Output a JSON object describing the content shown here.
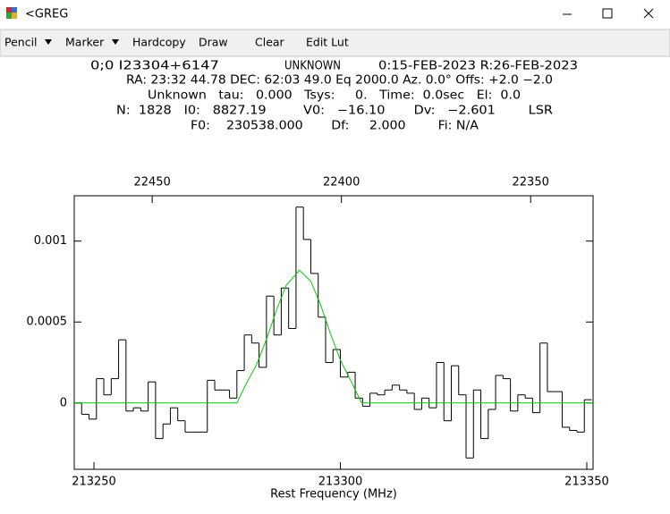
{
  "window": {
    "title": "<GREG",
    "menu": [
      "Pencil",
      "Marker",
      "Hardcopy",
      "Draw",
      "Clear",
      "Edit Lut"
    ]
  },
  "header": {
    "lines": [
      [
        "0;0 I23304+6147",
        "UNKNOWN",
        "0:15-FEB-2023 R:26-FEB-2023"
      ],
      [
        "RA: 23:32 44.78 DEC: 62:03 49.0 Eq 2000.0 Az. 0.0° Offs: +2.0 −2.0"
      ],
      [
        "Unknown   tau:   0.000   Tsys:     0.   Time:  0.0sec   El:  0.0"
      ],
      [
        "N:  1828   I0:   8827.19         V0:   −16.10       Dv:   −2.601        LSR"
      ],
      [
        "F0:    230538.000       Df:     2.000        Fi: N/A"
      ]
    ]
  },
  "chart_data": {
    "type": "step",
    "xlabel": "Rest Frequency (MHz)",
    "xlim": [
      213246.0,
      213351.27
    ],
    "xticks": [
      213250,
      213300,
      213350
    ],
    "x2lim": [
      22470.6,
      22333.5
    ],
    "x2ticks": [
      22450,
      22400,
      22350
    ],
    "ylim": [
      -0.00041,
      0.00128
    ],
    "yticks": [
      0,
      0.0005,
      0.001
    ],
    "series": [
      {
        "color": "#000000",
        "x": [
          213246.75,
          213248.25,
          213249.75,
          213251.25,
          213252.75,
          213254.25,
          213255.75,
          213257.25,
          213258.75,
          213260.25,
          213261.75,
          213263.25,
          213264.75,
          213266.25,
          213267.75,
          213269.25,
          213270.75,
          213272.25,
          213273.75,
          213275.25,
          213276.75,
          213278.25,
          213279.75,
          213281.25,
          213282.75,
          213284.25,
          213285.75,
          213287.25,
          213288.75,
          213290.25,
          213291.75,
          213293.25,
          213294.75,
          213296.25,
          213297.75,
          213299.25,
          213300.75,
          213302.25,
          213303.75,
          213305.25,
          213306.75,
          213308.25,
          213309.75,
          213311.25,
          213312.75,
          213314.25,
          213315.75,
          213317.25,
          213318.75,
          213320.25,
          213321.75,
          213323.25,
          213324.75,
          213326.25,
          213327.75,
          213329.25,
          213330.75,
          213332.25,
          213333.75,
          213335.25,
          213336.75,
          213338.25,
          213339.75,
          213341.25,
          213342.75,
          213344.25,
          213345.75,
          213347.25,
          213348.75,
          213350.25
        ],
        "values": [
          0,
          -7e-05,
          -0.0001,
          0.00015,
          5e-05,
          0.00015,
          0.00039,
          -5e-05,
          -3e-05,
          -5e-05,
          0.00013,
          -0.00022,
          -0.00013,
          -3e-05,
          -0.00011,
          -0.00018,
          -0.00018,
          -0.00018,
          0.00014,
          8e-05,
          8e-05,
          3e-05,
          0.0002,
          0.00042,
          0.00037,
          0.00022,
          0.00066,
          0.00042,
          0.00071,
          0.00046,
          0.00121,
          0.00101,
          0.0008,
          0.00053,
          0.00025,
          0.00033,
          0.00016,
          0.00019,
          3e-05,
          -2e-05,
          6e-05,
          5e-05,
          8e-05,
          0.00011,
          8e-05,
          6e-05,
          -4e-05,
          3e-05,
          -3e-05,
          0.00025,
          -0.00011,
          0.00023,
          5e-05,
          -0.00034,
          8e-05,
          -0.00022,
          -4e-05,
          0.00017,
          0.00015,
          -5e-05,
          5e-05,
          3e-05,
          -6e-05,
          0.00037,
          7e-05,
          7e-05,
          -0.00015,
          -0.00017,
          -0.00018,
          2e-05
        ]
      },
      {
        "color": "#00cc00",
        "x": [
          213246.0,
          213279,
          213281,
          213283,
          213285,
          213287,
          213289,
          213291.7,
          213294,
          213296,
          213298,
          213300,
          213302,
          213304.3,
          213351.27
        ],
        "values": [
          0,
          0,
          0.000125,
          0.000237,
          0.000393,
          0.000571,
          0.000727,
          0.00082,
          0.000752,
          0.000605,
          0.000427,
          0.000265,
          0.000144,
          0,
          0
        ]
      }
    ]
  }
}
